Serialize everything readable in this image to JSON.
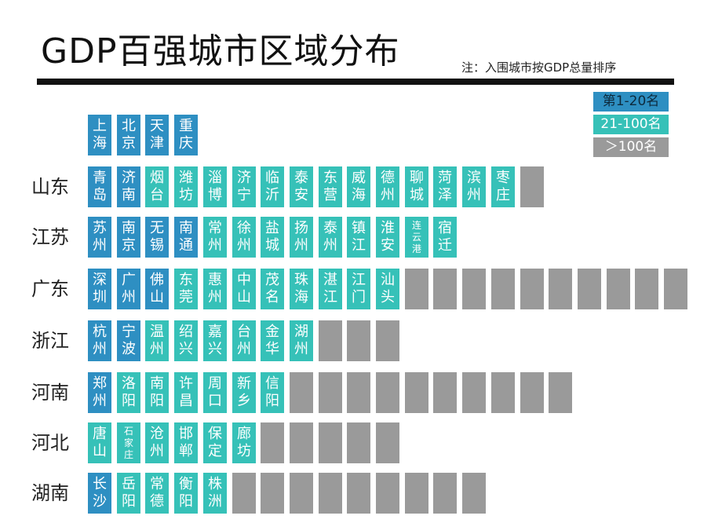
{
  "title": "GDP百强城市区域分布",
  "note": "注：入围城市按GDP总量排序",
  "colors": {
    "tier1": "#2e8fc2",
    "tier2": "#36c1b8",
    "tier3": "#9a9a9a"
  },
  "legend": [
    {
      "label": "第1-20名",
      "tier": "t1"
    },
    {
      "label": "21-100名",
      "tier": "t2"
    },
    {
      "label": "＞100名",
      "tier": "t3"
    }
  ],
  "chart_data": {
    "type": "table",
    "title": "GDP百强城市区域分布",
    "note": "注：入围城市按GDP总量排序",
    "rows": [
      {
        "province": "",
        "cities": [
          {
            "name": "上海",
            "tier": "t1"
          },
          {
            "name": "北京",
            "tier": "t1"
          },
          {
            "name": "天津",
            "tier": "t1"
          },
          {
            "name": "重庆",
            "tier": "t1"
          }
        ],
        "gray": 0
      },
      {
        "province": "山东",
        "cities": [
          {
            "name": "青岛",
            "tier": "t1"
          },
          {
            "name": "济南",
            "tier": "t1"
          },
          {
            "name": "烟台",
            "tier": "t2"
          },
          {
            "name": "潍坊",
            "tier": "t2"
          },
          {
            "name": "淄博",
            "tier": "t2"
          },
          {
            "name": "济宁",
            "tier": "t2"
          },
          {
            "name": "临沂",
            "tier": "t2"
          },
          {
            "name": "泰安",
            "tier": "t2"
          },
          {
            "name": "东营",
            "tier": "t2"
          },
          {
            "name": "威海",
            "tier": "t2"
          },
          {
            "name": "德州",
            "tier": "t2"
          },
          {
            "name": "聊城",
            "tier": "t2"
          },
          {
            "name": "菏泽",
            "tier": "t2"
          },
          {
            "name": "滨州",
            "tier": "t2"
          },
          {
            "name": "枣庄",
            "tier": "t2"
          }
        ],
        "gray": 1
      },
      {
        "province": "江苏",
        "cities": [
          {
            "name": "苏州",
            "tier": "t1"
          },
          {
            "name": "南京",
            "tier": "t1"
          },
          {
            "name": "无锡",
            "tier": "t1"
          },
          {
            "name": "南通",
            "tier": "t1"
          },
          {
            "name": "常州",
            "tier": "t2"
          },
          {
            "name": "徐州",
            "tier": "t2"
          },
          {
            "name": "盐城",
            "tier": "t2"
          },
          {
            "name": "扬州",
            "tier": "t2"
          },
          {
            "name": "泰州",
            "tier": "t2"
          },
          {
            "name": "镇江",
            "tier": "t2"
          },
          {
            "name": "淮安",
            "tier": "t2"
          },
          {
            "name": "连云港",
            "tier": "t2"
          },
          {
            "name": "宿迁",
            "tier": "t2"
          }
        ],
        "gray": 0
      },
      {
        "province": "广东",
        "cities": [
          {
            "name": "深圳",
            "tier": "t1"
          },
          {
            "name": "广州",
            "tier": "t1"
          },
          {
            "name": "佛山",
            "tier": "t1"
          },
          {
            "name": "东莞",
            "tier": "t2"
          },
          {
            "name": "惠州",
            "tier": "t2"
          },
          {
            "name": "中山",
            "tier": "t2"
          },
          {
            "name": "茂名",
            "tier": "t2"
          },
          {
            "name": "珠海",
            "tier": "t2"
          },
          {
            "name": "湛江",
            "tier": "t2"
          },
          {
            "name": "江门",
            "tier": "t2"
          },
          {
            "name": "汕头",
            "tier": "t2"
          }
        ],
        "gray": 10
      },
      {
        "province": "浙江",
        "cities": [
          {
            "name": "杭州",
            "tier": "t1"
          },
          {
            "name": "宁波",
            "tier": "t1"
          },
          {
            "name": "温州",
            "tier": "t2"
          },
          {
            "name": "绍兴",
            "tier": "t2"
          },
          {
            "name": "嘉兴",
            "tier": "t2"
          },
          {
            "name": "台州",
            "tier": "t2"
          },
          {
            "name": "金华",
            "tier": "t2"
          },
          {
            "name": "湖州",
            "tier": "t2"
          }
        ],
        "gray": 3
      },
      {
        "province": "河南",
        "cities": [
          {
            "name": "郑州",
            "tier": "t1"
          },
          {
            "name": "洛阳",
            "tier": "t2"
          },
          {
            "name": "南阳",
            "tier": "t2"
          },
          {
            "name": "许昌",
            "tier": "t2"
          },
          {
            "name": "周口",
            "tier": "t2"
          },
          {
            "name": "新乡",
            "tier": "t2"
          },
          {
            "name": "信阳",
            "tier": "t2"
          }
        ],
        "gray": 10
      },
      {
        "province": "河北",
        "cities": [
          {
            "name": "唐山",
            "tier": "t2"
          },
          {
            "name": "石家庄",
            "tier": "t2"
          },
          {
            "name": "沧州",
            "tier": "t2"
          },
          {
            "name": "邯郸",
            "tier": "t2"
          },
          {
            "name": "保定",
            "tier": "t2"
          },
          {
            "name": "廊坊",
            "tier": "t2"
          }
        ],
        "gray": 5
      },
      {
        "province": "湖南",
        "cities": [
          {
            "name": "长沙",
            "tier": "t1"
          },
          {
            "name": "岳阳",
            "tier": "t2"
          },
          {
            "name": "常德",
            "tier": "t2"
          },
          {
            "name": "衡阳",
            "tier": "t2"
          },
          {
            "name": "株洲",
            "tier": "t2"
          }
        ],
        "gray": 9
      }
    ]
  }
}
